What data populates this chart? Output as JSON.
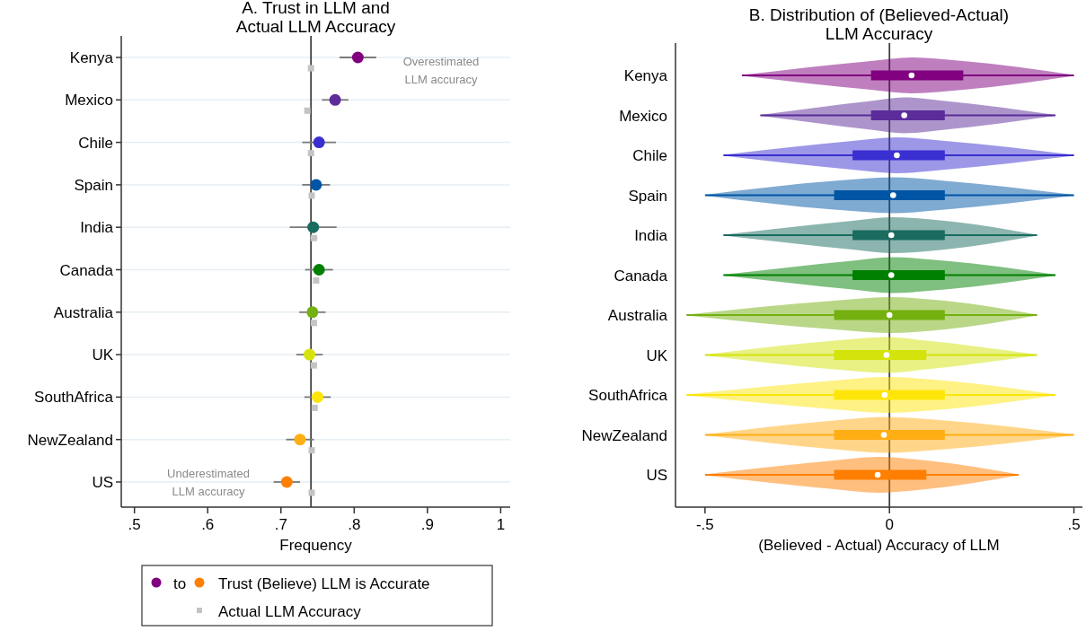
{
  "chart_data": [
    {
      "type": "scatter",
      "orientation": "horizontal",
      "title": "A. Trust in LLM and\nActual LLM Accuracy",
      "xlabel": "Frequency",
      "categories": [
        "Kenya",
        "Mexico",
        "Chile",
        "Spain",
        "India",
        "Canada",
        "Australia",
        "UK",
        "SouthAfrica",
        "NewZealand",
        "US"
      ],
      "series": [
        {
          "name": "Trust (Believe) LLM is Accurate",
          "marker": "circle",
          "colors": [
            "#800080",
            "#5b2c9a",
            "#3a2fd0",
            "#0055a5",
            "#1a6b60",
            "#008000",
            "#74b00f",
            "#d4e30b",
            "#fde50a",
            "#ffae14",
            "#ff7f00"
          ],
          "values": [
            0.805,
            0.774,
            0.752,
            0.748,
            0.744,
            0.752,
            0.743,
            0.739,
            0.75,
            0.726,
            0.708
          ],
          "errors": [
            0.025,
            0.018,
            0.023,
            0.019,
            0.032,
            0.019,
            0.018,
            0.018,
            0.018,
            0.019,
            0.018
          ]
        },
        {
          "name": "Actual LLM Accuracy",
          "marker": "square",
          "color": "#c4c4c4",
          "values": [
            0.741,
            0.736,
            0.741,
            0.742,
            0.745,
            0.748,
            0.745,
            0.745,
            0.746,
            0.742,
            0.742
          ],
          "errors": [
            null,
            null,
            null,
            null,
            0.005,
            null,
            null,
            null,
            null,
            null,
            null
          ]
        }
      ],
      "xlim": [
        0.482,
        1.013
      ],
      "xticks": [
        {
          "value": 0.5,
          "label": ".5"
        },
        {
          "value": 0.6,
          "label": ".6"
        },
        {
          "value": 0.7,
          "label": ".7"
        },
        {
          "value": 0.8,
          "label": ".8"
        },
        {
          "value": 0.9,
          "label": ".9"
        },
        1
      ],
      "ref_lines": [
        {
          "axis": "x",
          "value": 0.741,
          "color": "#404040"
        }
      ],
      "annotations": [
        "Overestimated\nLLM accuracy",
        "Underestimated\nLLM accuracy",
        "to"
      ],
      "grid": "y",
      "legend": "bottom"
    },
    {
      "type": "box",
      "orientation": "horizontal",
      "title": "B. Distribution of (Believed-Actual)\nLLM Accuracy",
      "xlabel": "(Believed - Actual) Accuracy of LLM",
      "categories": [
        "Kenya",
        "Mexico",
        "Chile",
        "Spain",
        "India",
        "Canada",
        "Australia",
        "UK",
        "SouthAfrica",
        "NewZealand",
        "US"
      ],
      "colors": [
        "#800080",
        "#5b2c9a",
        "#3a2fd0",
        "#0055a5",
        "#1a6b60",
        "#008000",
        "#74b00f",
        "#d4e30b",
        "#fde50a",
        "#ffae14",
        "#ff7f00"
      ],
      "boxes": [
        {
          "low": -0.4,
          "q1": -0.05,
          "median": 0.06,
          "q3": 0.2,
          "high": 0.5
        },
        {
          "low": -0.35,
          "q1": -0.05,
          "median": 0.04,
          "q3": 0.15,
          "high": 0.45
        },
        {
          "low": -0.45,
          "q1": -0.1,
          "median": 0.02,
          "q3": 0.15,
          "high": 0.5
        },
        {
          "low": -0.5,
          "q1": -0.15,
          "median": 0.01,
          "q3": 0.15,
          "high": 0.5
        },
        {
          "low": -0.45,
          "q1": -0.1,
          "median": 0.005,
          "q3": 0.15,
          "high": 0.4
        },
        {
          "low": -0.45,
          "q1": -0.1,
          "median": 0.005,
          "q3": 0.15,
          "high": 0.45
        },
        {
          "low": -0.55,
          "q1": -0.15,
          "median": 0.0,
          "q3": 0.15,
          "high": 0.4
        },
        {
          "low": -0.5,
          "q1": -0.15,
          "median": -0.008,
          "q3": 0.1,
          "high": 0.4
        },
        {
          "low": -0.55,
          "q1": -0.15,
          "median": -0.013,
          "q3": 0.15,
          "high": 0.45
        },
        {
          "low": -0.5,
          "q1": -0.15,
          "median": -0.015,
          "q3": 0.15,
          "high": 0.5
        },
        {
          "low": -0.5,
          "q1": -0.15,
          "median": -0.032,
          "q3": 0.1,
          "high": 0.35
        }
      ],
      "xlim": [
        -0.58,
        0.523
      ],
      "xticks": [
        {
          "value": -0.5,
          "label": "-.5"
        },
        0,
        {
          "value": 0.5,
          "label": ".5"
        }
      ],
      "ref_lines": [
        {
          "axis": "x",
          "value": 0,
          "color": "#404040"
        }
      ]
    }
  ]
}
